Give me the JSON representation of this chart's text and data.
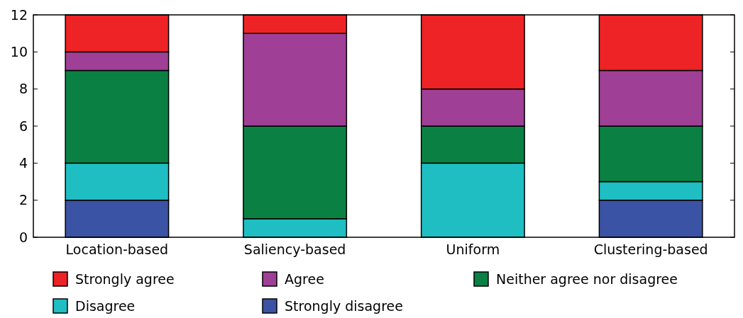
{
  "chart_data": {
    "type": "bar",
    "stacked": true,
    "categories": [
      "Location-based",
      "Saliency-based",
      "Uniform",
      "Clustering-based"
    ],
    "series": [
      {
        "name": "Strongly disagree",
        "color": "#3a53a4",
        "values": [
          2,
          0,
          0,
          2
        ]
      },
      {
        "name": "Disagree",
        "color": "#1fbec2",
        "values": [
          2,
          1,
          4,
          1
        ]
      },
      {
        "name": "Neither agree nor disagree",
        "color": "#0a8143",
        "values": [
          5,
          5,
          2,
          3
        ]
      },
      {
        "name": "Agree",
        "color": "#a03f96",
        "values": [
          1,
          5,
          2,
          3
        ]
      },
      {
        "name": "Strongly agree",
        "color": "#ee2326",
        "values": [
          2,
          1,
          4,
          3
        ]
      }
    ],
    "ylim": [
      0,
      12
    ],
    "yticks": [
      0,
      2,
      4,
      6,
      8,
      10,
      12
    ],
    "legend": "bottom"
  }
}
